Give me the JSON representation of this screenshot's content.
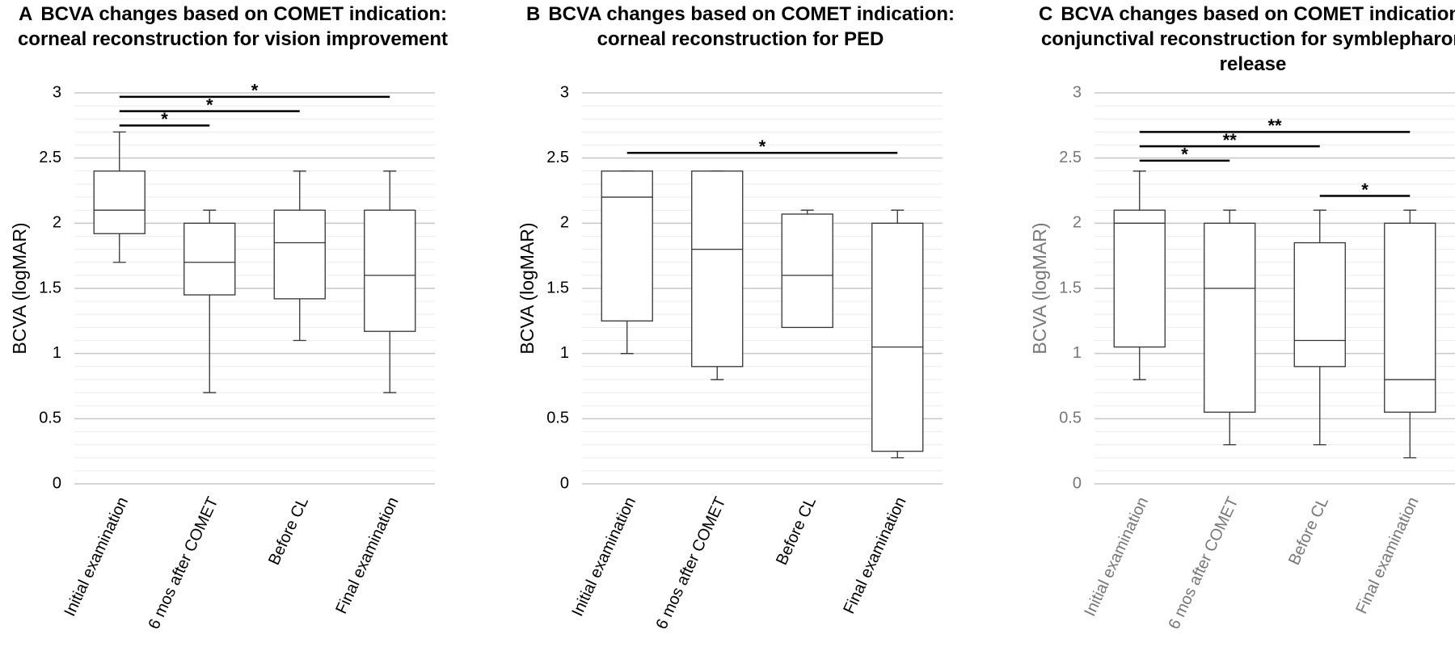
{
  "chart_data": [
    {
      "type": "box",
      "panel": "A",
      "title": "BCVA changes based on COMET indication: corneal reconstruction for vision improvement",
      "y_label": "BCVA (logMAR)",
      "label_color": "#000000",
      "categories": [
        "Initial examination",
        "6 mos after COMET",
        "Before CL",
        "Final examination"
      ],
      "boxes": [
        {
          "min": 1.7,
          "q1": 1.92,
          "median": 2.1,
          "q3": 2.4,
          "max": 2.7
        },
        {
          "min": 0.7,
          "q1": 1.45,
          "median": 1.7,
          "q3": 2.0,
          "max": 2.1
        },
        {
          "min": 1.1,
          "q1": 1.42,
          "median": 1.85,
          "q3": 2.1,
          "max": 2.4
        },
        {
          "min": 0.7,
          "q1": 1.17,
          "median": 1.6,
          "q3": 2.1,
          "max": 2.4
        }
      ],
      "significance": [
        {
          "from": 0,
          "to": 1,
          "y": 2.75,
          "label": "*"
        },
        {
          "from": 0,
          "to": 2,
          "y": 2.86,
          "label": "*"
        },
        {
          "from": 0,
          "to": 3,
          "y": 2.97,
          "label": "*"
        }
      ],
      "ylim": [
        0,
        3
      ],
      "yticks": [
        0,
        0.5,
        1,
        1.5,
        2,
        2.5,
        3
      ],
      "minor_yticks": [
        0.1,
        0.2,
        0.3,
        0.4,
        0.6,
        0.7,
        0.8,
        0.9,
        1.1,
        1.2,
        1.3,
        1.4,
        1.6,
        1.7,
        1.8,
        1.9,
        2.1,
        2.2,
        2.3,
        2.4,
        2.6,
        2.7,
        2.8,
        2.9
      ],
      "grid": true
    },
    {
      "type": "box",
      "panel": "B",
      "title": "BCVA changes based on COMET indication: corneal reconstruction for PED",
      "y_label": "BCVA (logMAR)",
      "label_color": "#000000",
      "categories": [
        "Initial examination",
        "6 mos after COMET",
        "Before CL",
        "Final examination"
      ],
      "boxes": [
        {
          "min": 1.0,
          "q1": 1.25,
          "median": 2.2,
          "q3": 2.4,
          "max": 2.4
        },
        {
          "min": 0.8,
          "q1": 0.9,
          "median": 1.8,
          "q3": 2.4,
          "max": 2.4
        },
        {
          "min": 1.2,
          "q1": 1.2,
          "median": 1.6,
          "q3": 2.07,
          "max": 2.1
        },
        {
          "min": 0.2,
          "q1": 0.25,
          "median": 1.05,
          "q3": 2.0,
          "max": 2.1
        }
      ],
      "significance": [
        {
          "from": 0,
          "to": 3,
          "y": 2.54,
          "label": "*"
        }
      ],
      "ylim": [
        0,
        3
      ],
      "yticks": [
        0,
        0.5,
        1,
        1.5,
        2,
        2.5,
        3
      ],
      "minor_yticks": [
        0.1,
        0.2,
        0.3,
        0.4,
        0.6,
        0.7,
        0.8,
        0.9,
        1.1,
        1.2,
        1.3,
        1.4,
        1.6,
        1.7,
        1.8,
        1.9,
        2.1,
        2.2,
        2.3,
        2.4,
        2.6,
        2.7,
        2.8,
        2.9
      ],
      "grid": true
    },
    {
      "type": "box",
      "panel": "C",
      "title": "BCVA changes based on COMET indication: conjunctival reconstruction for symblepharon release",
      "y_label": "BCVA (logMAR)",
      "label_color": "#777777",
      "categories": [
        "Initial examination",
        "6 mos after COMET",
        "Before CL",
        "Final examination"
      ],
      "boxes": [
        {
          "min": 0.8,
          "q1": 1.05,
          "median": 2.0,
          "q3": 2.1,
          "max": 2.4
        },
        {
          "min": 0.3,
          "q1": 0.55,
          "median": 1.5,
          "q3": 2.0,
          "max": 2.1
        },
        {
          "min": 0.3,
          "q1": 0.9,
          "median": 1.1,
          "q3": 1.85,
          "max": 2.1
        },
        {
          "min": 0.2,
          "q1": 0.55,
          "median": 0.8,
          "q3": 2.0,
          "max": 2.1
        }
      ],
      "significance": [
        {
          "from": 0,
          "to": 1,
          "y": 2.48,
          "label": "*"
        },
        {
          "from": 0,
          "to": 2,
          "y": 2.59,
          "label": "**"
        },
        {
          "from": 0,
          "to": 3,
          "y": 2.7,
          "label": "**"
        },
        {
          "from": 2,
          "to": 3,
          "y": 2.21,
          "label": "*"
        }
      ],
      "ylim": [
        0,
        3
      ],
      "yticks": [
        0,
        0.5,
        1,
        1.5,
        2,
        2.5,
        3
      ],
      "minor_yticks": [
        0.1,
        0.2,
        0.3,
        0.4,
        0.6,
        0.7,
        0.8,
        0.9,
        1.1,
        1.2,
        1.3,
        1.4,
        1.6,
        1.7,
        1.8,
        1.9,
        2.1,
        2.2,
        2.3,
        2.4,
        2.6,
        2.7,
        2.8,
        2.9
      ],
      "grid": true
    }
  ]
}
